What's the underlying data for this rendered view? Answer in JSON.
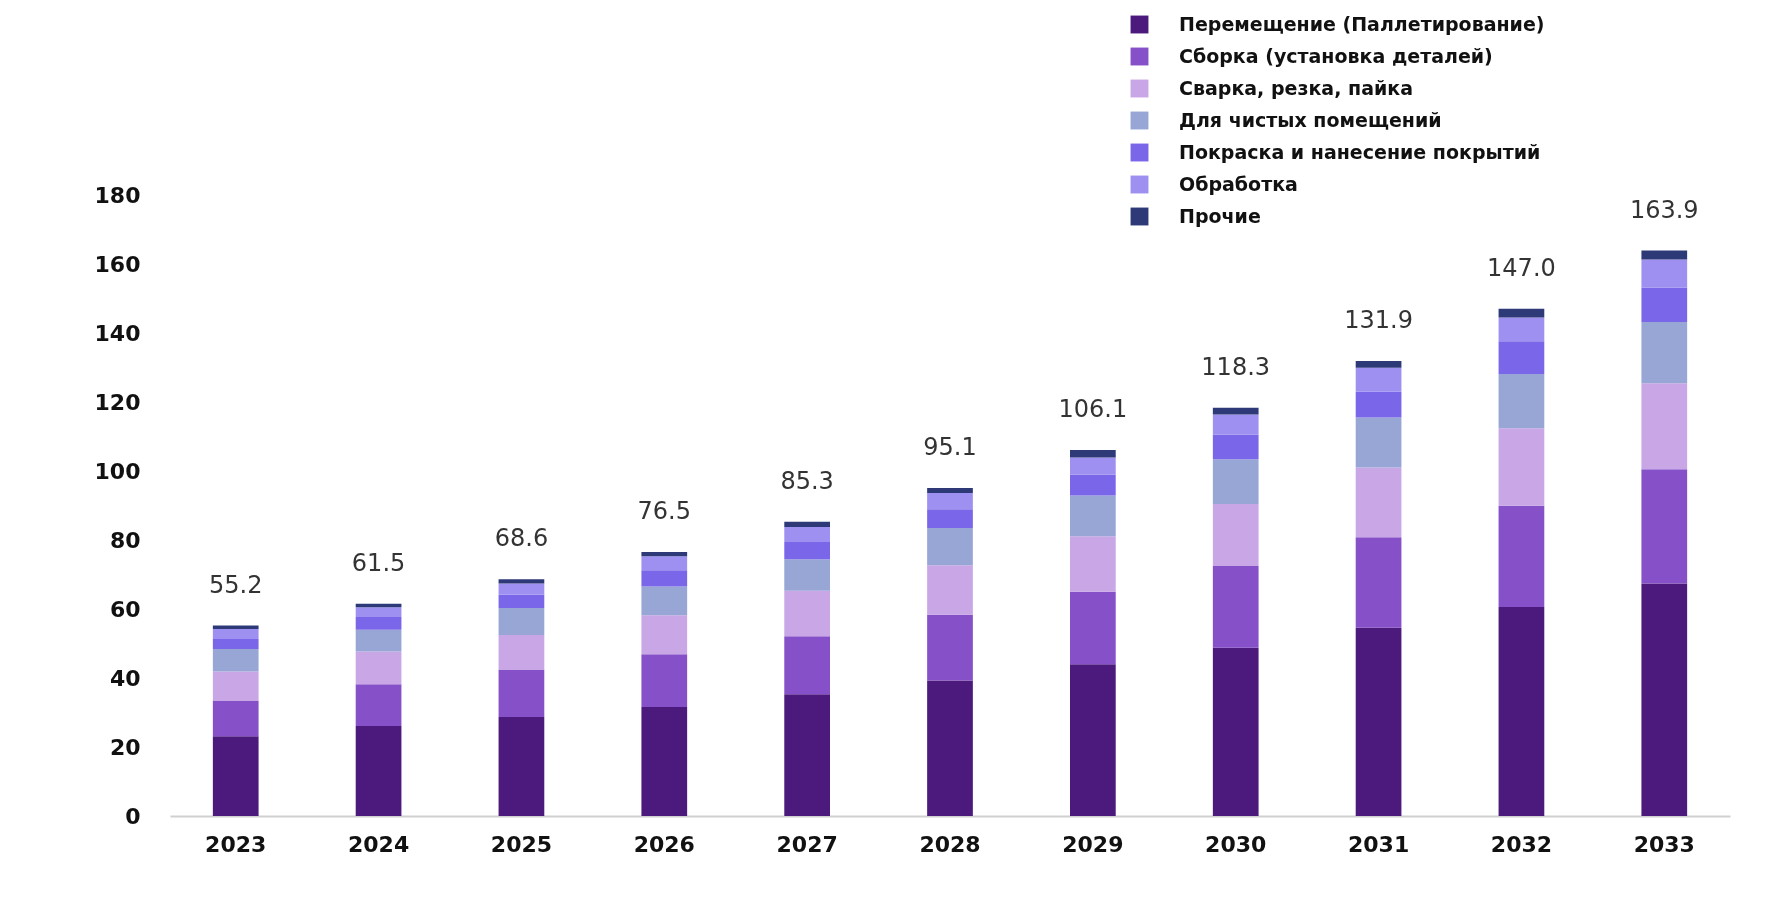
{
  "chart_data": {
    "type": "bar",
    "stacked": true,
    "categories": [
      "2023",
      "2024",
      "2025",
      "2026",
      "2027",
      "2028",
      "2029",
      "2030",
      "2031",
      "2032",
      "2033"
    ],
    "series": [
      {
        "name": "Перемещение (Паллетирование)",
        "color": "#4b1a7c",
        "values": [
          23.1,
          26.1,
          28.7,
          31.6,
          35.3,
          39.3,
          44.0,
          48.8,
          54.6,
          60.6,
          67.4
        ]
      },
      {
        "name": "Сборка (установка деталей)",
        "color": "#8550c8",
        "values": [
          10.4,
          12.1,
          13.8,
          15.3,
          16.8,
          19.0,
          21.0,
          23.7,
          26.2,
          29.3,
          33.1
        ]
      },
      {
        "name": "Сварка, резка, пайка",
        "color": "#c9a6e6",
        "values": [
          8.4,
          9.5,
          10.0,
          11.3,
          13.2,
          14.4,
          16.1,
          17.9,
          20.2,
          22.5,
          24.9
        ]
      },
      {
        "name": "Для чистых помещений",
        "color": "#98a6d6",
        "values": [
          6.5,
          6.3,
          7.8,
          8.3,
          9.1,
          10.8,
          11.8,
          13.0,
          14.5,
          15.7,
          17.8
        ]
      },
      {
        "name": "Покраска и нанесение покрытий",
        "color": "#7a66e8",
        "values": [
          2.9,
          3.7,
          3.8,
          4.7,
          5.0,
          5.4,
          6.1,
          7.2,
          7.5,
          9.5,
          10.0
        ]
      },
      {
        "name": "Обработка",
        "color": "#9d90f0",
        "values": [
          2.9,
          2.8,
          3.3,
          4.1,
          4.4,
          4.7,
          4.9,
          5.8,
          6.9,
          6.9,
          8.1
        ]
      },
      {
        "name": "Прочие",
        "color": "#2e3a78",
        "values": [
          1.0,
          1.0,
          1.2,
          1.2,
          1.5,
          1.5,
          2.2,
          1.9,
          2.0,
          2.5,
          2.6
        ]
      }
    ],
    "totals": [
      "55.2",
      "61.5",
      "68.6",
      "76.5",
      "85.3",
      "95.1",
      "106.1",
      "118.3",
      "131.9",
      "147.0",
      "163.9"
    ],
    "ylim": [
      0,
      180
    ],
    "yticks": [
      0,
      20,
      40,
      60,
      80,
      100,
      120,
      140,
      160,
      180
    ],
    "grid": false,
    "legend": "top right"
  }
}
